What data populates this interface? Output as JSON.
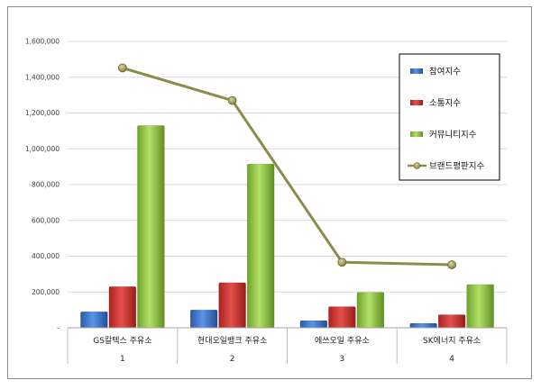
{
  "chart_data": {
    "type": "bar",
    "categories": [
      "GS칼텍스 주유소",
      "현대오일뱅크 주유소",
      "에쓰오일 주유소",
      "SK에너지 주유소"
    ],
    "category_numbers": [
      "1",
      "2",
      "3",
      "4"
    ],
    "series": [
      {
        "name": "참여지수",
        "type": "bar",
        "color": "#3a6fc4",
        "values": [
          90000,
          100000,
          40000,
          25000
        ]
      },
      {
        "name": "소통지수",
        "type": "bar",
        "color": "#c8302c",
        "values": [
          230000,
          252000,
          118000,
          73000
        ]
      },
      {
        "name": "커뮤니티지수",
        "type": "bar",
        "color": "#8cc63f",
        "values": [
          1130000,
          915000,
          198000,
          242000
        ]
      },
      {
        "name": "브랜드평판지수",
        "type": "line",
        "color": "#8b8b4d",
        "values": [
          1452000,
          1270000,
          366000,
          352000
        ]
      }
    ],
    "yticks": [
      "-",
      "200,000",
      "400,000",
      "600,000",
      "800,000",
      "1,000,000",
      "1,200,000",
      "1,400,000",
      "1,600,000"
    ],
    "ylim": [
      0,
      1600000
    ],
    "grid": true,
    "legend": "right"
  }
}
